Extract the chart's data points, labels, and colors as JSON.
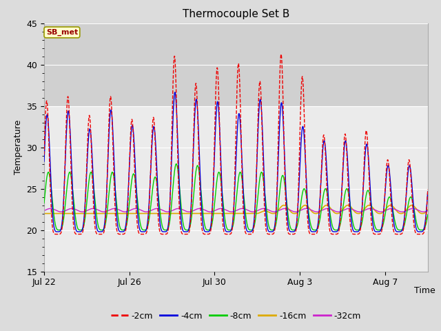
{
  "title": "Thermocouple Set B",
  "xlabel": "Time",
  "ylabel": "Temperature",
  "ylim": [
    15,
    45
  ],
  "yticks": [
    15,
    20,
    25,
    30,
    35,
    40,
    45
  ],
  "shade_ymin": 35,
  "shade_ymax": 45,
  "background_color": "#dcdcdc",
  "plot_background": "#ebebeb",
  "shade_color": "#d0d0d0",
  "annotation_text": "SB_met",
  "annotation_fg": "#990000",
  "annotation_bg": "#ffffcc",
  "annotation_edge": "#999900",
  "legend_labels": [
    "-2cm",
    "-4cm",
    "-8cm",
    "-16cm",
    "-32cm"
  ],
  "legend_colors": [
    "#ee0000",
    "#0000dd",
    "#00cc00",
    "#ddaa00",
    "#cc22cc"
  ],
  "legend_linestyles": [
    "--",
    "-",
    "-",
    "-",
    "-"
  ],
  "xtick_labels": [
    "Jul 22",
    "Jul 26",
    "Jul 30",
    "Aug 3",
    "Aug 7"
  ],
  "xtick_offsets": [
    0,
    4,
    8,
    12,
    16
  ],
  "total_days": 18,
  "base_temp": 22.0,
  "period": 1.0,
  "series": {
    "m2cm": {
      "amp_peaks": [
        16,
        17,
        14,
        17,
        14,
        13,
        22,
        18,
        20,
        21,
        18,
        22,
        20,
        12,
        12,
        13,
        9,
        9
      ],
      "min_temp": 19.5,
      "phase": 0.62,
      "sharpness": 3.5
    },
    "m4cm": {
      "amp_peaks": [
        14,
        15,
        12,
        15,
        13,
        12,
        17,
        16,
        16,
        14,
        16,
        16,
        13,
        11,
        11,
        11,
        8,
        8
      ],
      "min_temp": 19.8,
      "phase": 0.64,
      "sharpness": 2.5
    },
    "m8cm": {
      "amp_peaks": [
        7,
        7,
        7,
        7,
        7,
        6,
        8,
        8,
        7,
        7,
        7,
        7,
        5,
        5,
        5,
        5,
        4,
        4
      ],
      "min_temp": 20.0,
      "phase": 0.7,
      "sharpness": 1.8
    },
    "m16cm": {
      "amp_peaks": [
        0,
        0,
        0,
        0,
        0,
        0,
        0,
        0,
        0,
        0,
        0,
        1,
        1,
        1,
        1,
        1,
        1,
        1
      ],
      "min_temp": 22.0,
      "phase": 0.75,
      "sharpness": 1.2
    },
    "m32cm": {
      "amp_peaks": [
        0.4,
        0.4,
        0.4,
        0.4,
        0.4,
        0.4,
        0.4,
        0.4,
        0.4,
        0.4,
        0.4,
        0.4,
        0.4,
        0.4,
        0.4,
        0.4,
        0.4,
        0.4
      ],
      "min_temp": 22.2,
      "phase": 0.8,
      "sharpness": 1.0
    }
  }
}
